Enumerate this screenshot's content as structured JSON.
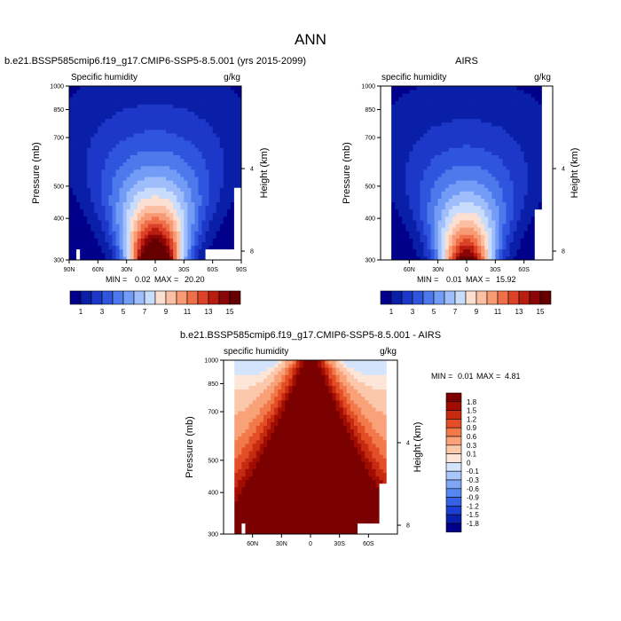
{
  "figure_title": "ANN",
  "chart_data": [
    {
      "type": "heatmap",
      "title": "b.e21.BSSP585cmip6.f19_g17.CMIP6-SSP5-8.5.001 (yrs 2015-2099)",
      "left_string": "Specific humidity",
      "right_string": "g/kg",
      "ylabel": "Pressure (mb)",
      "y2label": "Height (km)",
      "y_ticks": [
        "300",
        "400",
        "500",
        "700",
        "850",
        "1000"
      ],
      "y2_ticks": [
        "8",
        "4"
      ],
      "x_ticks": [
        "90N",
        "60N",
        "30N",
        "0",
        "30S",
        "60S",
        "90S"
      ],
      "xlim": [
        90,
        -90
      ],
      "ylim": [
        1000,
        300
      ],
      "min_label": "MIN =",
      "min_value": "0.02",
      "max_label": "MAX =",
      "max_value": "20.20",
      "peak_value": 20.2,
      "levels": [
        1,
        2,
        3,
        4,
        5,
        6,
        7,
        8,
        9,
        10,
        11,
        12,
        13,
        14,
        15
      ],
      "colorbar_labels": [
        "1",
        "3",
        "5",
        "7",
        "9",
        "11",
        "13",
        "15"
      ]
    },
    {
      "type": "heatmap",
      "title": "AIRS",
      "left_string": "specific humidity",
      "right_string": "g/kg",
      "ylabel": "Pressure (mb)",
      "y2label": "Height (km)",
      "y_ticks": [
        "300",
        "400",
        "500",
        "700",
        "850",
        "1000"
      ],
      "y2_ticks": [
        "8",
        "4"
      ],
      "x_ticks": [
        "60N",
        "30N",
        "0",
        "30S",
        "60S"
      ],
      "xlim": [
        90,
        -90
      ],
      "ylim": [
        1000,
        300
      ],
      "min_label": "MIN =",
      "min_value": "0.01",
      "max_label": "MAX =",
      "max_value": "15.92",
      "peak_value": 15.92,
      "levels": [
        1,
        2,
        3,
        4,
        5,
        6,
        7,
        8,
        9,
        10,
        11,
        12,
        13,
        14,
        15
      ],
      "colorbar_labels": [
        "1",
        "3",
        "5",
        "7",
        "9",
        "11",
        "13",
        "15"
      ]
    },
    {
      "type": "heatmap",
      "title": "b.e21.BSSP585cmip6.f19_g17.CMIP6-SSP5-8.5.001 - AIRS",
      "left_string": "specific humidity",
      "right_string": "g/kg",
      "ylabel": "Pressure (mb)",
      "y2label": "Height (km)",
      "y_ticks": [
        "300",
        "400",
        "500",
        "700",
        "850",
        "1000"
      ],
      "y2_ticks": [
        "8",
        "4"
      ],
      "x_ticks": [
        "60N",
        "30N",
        "0",
        "30S",
        "60S"
      ],
      "xlim": [
        90,
        -90
      ],
      "ylim": [
        1000,
        300
      ],
      "min_label": "MIN =",
      "min_value": "0.01",
      "max_label": "MAX =",
      "max_value": "4.81",
      "levels": [
        -1.8,
        -1.5,
        -1.2,
        -0.9,
        -0.6,
        -0.3,
        -0.1,
        0,
        0.1,
        0.3,
        0.6,
        0.9,
        1.2,
        1.5,
        1.8
      ],
      "colorbar_labels": [
        "1.8",
        "1.5",
        "1.2",
        "0.9",
        "0.6",
        "0.3",
        "0.1",
        "0",
        "-0.1",
        "-0.3",
        "-0.6",
        "-0.9",
        "-1.2",
        "-1.5",
        "-1.8"
      ]
    }
  ],
  "colors": {
    "abs_ramp": [
      "#00008b",
      "#0a1fa8",
      "#1d38c9",
      "#2f55de",
      "#4d79ec",
      "#729cf5",
      "#9ebdfa",
      "#c8dcfc",
      "#fbe0d2",
      "#fbbfa3",
      "#f89a74",
      "#ef7048",
      "#dc4227",
      "#b81d10",
      "#8a0606",
      "#660000"
    ],
    "diff_ramp": [
      "#00008b",
      "#0a20ad",
      "#1b3fd0",
      "#3461e5",
      "#5686f0",
      "#7ea6f5",
      "#a9c6fa",
      "#d3e4fc",
      "#fde6d7",
      "#fcc8ab",
      "#f9a178",
      "#f27a4a",
      "#e44e27",
      "#c62a10",
      "#a10d02",
      "#7b0000"
    ],
    "missing": "#ffffff"
  }
}
